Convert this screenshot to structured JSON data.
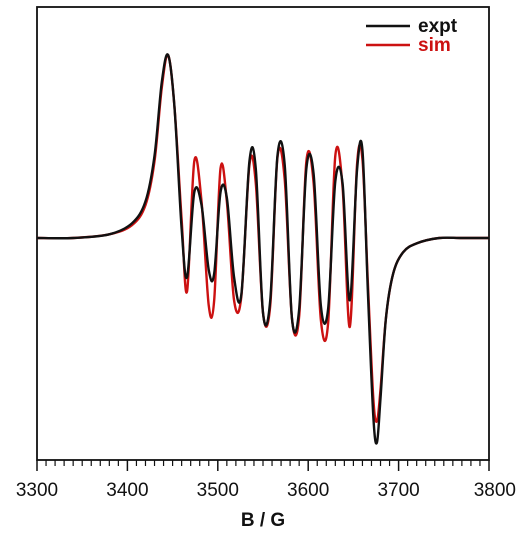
{
  "chart_data": {
    "type": "line",
    "title": "",
    "xlabel": "B / G",
    "ylabel": "",
    "xlim": [
      3300,
      3800
    ],
    "ylim": [
      -1.15,
      1.0
    ],
    "x_ticks": [
      3300,
      3400,
      3500,
      3600,
      3700,
      3800
    ],
    "x_tick_labels": [
      "3300",
      "3400",
      "3500",
      "3600",
      "3700",
      "3800"
    ],
    "x_minor_tick_step": 10,
    "y_ticks_shown": false,
    "grid": false,
    "legend_position": "top-right",
    "series": [
      {
        "name": "expt",
        "color": "#111111",
        "x": [
          3300,
          3340,
          3380,
          3405,
          3420,
          3430,
          3438,
          3445,
          3452,
          3460,
          3466,
          3474,
          3482,
          3490,
          3496,
          3503,
          3510,
          3518,
          3526,
          3535,
          3542,
          3550,
          3558,
          3566,
          3574,
          3582,
          3590,
          3598,
          3606,
          3614,
          3622,
          3630,
          3638,
          3646,
          3654,
          3660,
          3666,
          3672,
          3676,
          3680,
          3686,
          3694,
          3705,
          3720,
          3745,
          3770,
          3800
        ],
        "y": [
          0.0,
          0.0,
          0.02,
          0.08,
          0.2,
          0.45,
          0.85,
          1.0,
          0.72,
          0.05,
          -0.22,
          0.25,
          0.18,
          -0.18,
          -0.2,
          0.25,
          0.22,
          -0.22,
          -0.32,
          0.42,
          0.38,
          -0.42,
          -0.35,
          0.45,
          0.4,
          -0.45,
          -0.4,
          0.38,
          0.35,
          -0.38,
          -0.4,
          0.31,
          0.3,
          -0.35,
          0.37,
          0.48,
          -0.3,
          -1.0,
          -1.15,
          -0.9,
          -0.45,
          -0.2,
          -0.08,
          -0.03,
          0.0,
          0.0,
          0.0
        ]
      },
      {
        "name": "sim",
        "color": "#cc1111",
        "x": [
          3300,
          3340,
          3380,
          3405,
          3420,
          3430,
          3438,
          3445,
          3452,
          3460,
          3466,
          3474,
          3482,
          3490,
          3496,
          3503,
          3510,
          3518,
          3526,
          3535,
          3542,
          3550,
          3558,
          3566,
          3574,
          3582,
          3590,
          3598,
          3606,
          3614,
          3622,
          3630,
          3638,
          3646,
          3654,
          3660,
          3666,
          3672,
          3676,
          3680,
          3686,
          3694,
          3705,
          3720,
          3745,
          3770,
          3800
        ],
        "y": [
          0.0,
          0.0,
          0.02,
          0.07,
          0.18,
          0.42,
          0.82,
          1.0,
          0.72,
          0.1,
          -0.3,
          0.42,
          0.2,
          -0.38,
          -0.35,
          0.38,
          0.2,
          -0.35,
          -0.33,
          0.4,
          0.3,
          -0.42,
          -0.38,
          0.44,
          0.32,
          -0.45,
          -0.44,
          0.42,
          0.3,
          -0.46,
          -0.48,
          0.45,
          0.28,
          -0.5,
          0.4,
          0.43,
          -0.25,
          -0.9,
          -1.03,
          -0.85,
          -0.45,
          -0.2,
          -0.08,
          -0.03,
          0.0,
          0.0,
          0.0
        ]
      }
    ]
  }
}
